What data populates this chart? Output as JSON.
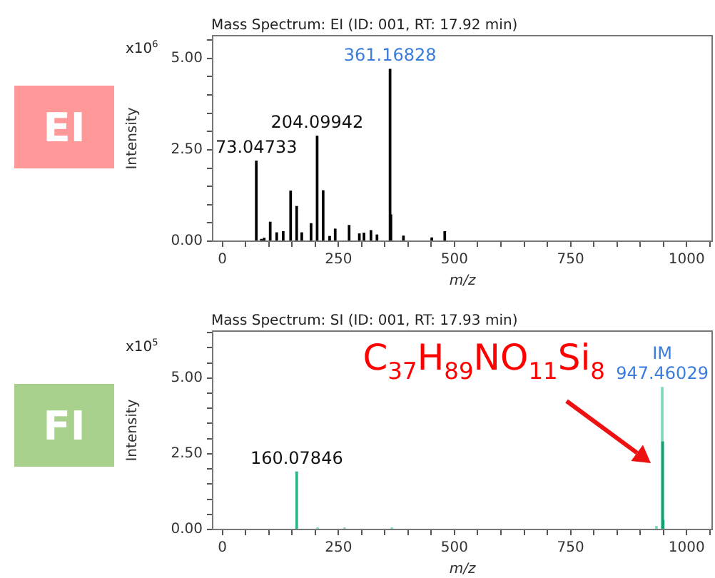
{
  "chart_data": [
    {
      "type": "bar",
      "title": "Mass Spectrum: EI (ID: 001, RT: 17.92 min)",
      "xlabel": "m/z",
      "ylabel": "Intensity",
      "annotations": [
        "x10$^{6}$",
        "EI",
        {
          "text": "73.04733",
          "x": 73.04733,
          "y": 2.19
        },
        {
          "text": "204.09942",
          "x": 204.09942,
          "y": 2.87
        },
        {
          "text": "361.16828",
          "x": 361.16828,
          "y": 4.7
        }
      ],
      "x": [
        73.04733,
        84,
        90,
        103,
        117,
        131,
        147,
        160,
        171,
        191,
        204.09942,
        217,
        231,
        243,
        273,
        295,
        305,
        320,
        333,
        361.16828,
        363,
        390,
        451,
        479
      ],
      "values": [
        2.19,
        0.05,
        0.08,
        0.52,
        0.23,
        0.26,
        1.37,
        0.95,
        0.23,
        0.48,
        2.87,
        1.38,
        0.13,
        0.33,
        0.43,
        0.2,
        0.22,
        0.29,
        0.17,
        4.7,
        0.72,
        0.14,
        0.09,
        0.26
      ],
      "color": "#000000",
      "xlim": [
        -21,
        1055
      ],
      "xticks": [
        0,
        {
          "value": 50,
          "label": null
        },
        {
          "value": 100,
          "label": null
        },
        {
          "value": 150,
          "label": null
        },
        {
          "value": 200,
          "label": null
        },
        250,
        {
          "value": 300,
          "label": null
        },
        {
          "value": 350,
          "label": null
        },
        {
          "value": 400,
          "label": null
        },
        {
          "value": 450,
          "label": null
        },
        500,
        {
          "value": 550,
          "label": null
        },
        {
          "value": 600,
          "label": null
        },
        {
          "value": 650,
          "label": null
        },
        {
          "value": 700,
          "label": null
        },
        750,
        {
          "value": 800,
          "label": null
        },
        {
          "value": 850,
          "label": null
        },
        {
          "value": 900,
          "label": null
        },
        {
          "value": 950,
          "label": null
        },
        1000,
        {
          "value": 1050,
          "label": null
        }
      ],
      "ylim": [
        0,
        5.62
      ],
      "yticks": [
        {
          "value": 0,
          "label": "0.00"
        },
        {
          "value": 0.5,
          "label": null
        },
        {
          "value": 1,
          "label": null
        },
        {
          "value": 1.5,
          "label": null
        },
        {
          "value": 2,
          "label": null
        },
        {
          "value": 2.5,
          "label": "2.50"
        },
        {
          "value": 3,
          "label": null
        },
        {
          "value": 3.5,
          "label": null
        },
        {
          "value": 4,
          "label": null
        },
        {
          "value": 4.5,
          "label": null
        },
        {
          "value": 5,
          "label": "5.00"
        },
        {
          "value": 5.5,
          "label": null
        }
      ],
      "grid": false,
      "legend": false
    },
    {
      "type": "bar",
      "title": "Mass Spectrum: SI (ID: 001, RT: 17.93 min)",
      "xlabel": "m/z",
      "ylabel": "Intensity",
      "annotations": [
        "x10$^{5}$",
        "FI",
        "C$_{37}$H$_{89}$NO$_{11}$Si$_{8}$",
        {
          "text": "160.07846",
          "x": 160.07846,
          "y": 1.9
        },
        {
          "text": "IM",
          "x": 947.46029,
          "y": 4.69
        },
        {
          "text": "947.46029",
          "x": 947.46029,
          "y": 4.69
        }
      ],
      "x": [
        160.07846,
        205,
        263,
        365,
        935,
        947.46029,
        948.46,
        949.46
      ],
      "values": [
        1.9,
        0.05,
        0.05,
        0.05,
        0.1,
        4.69,
        2.89,
        0.3
      ],
      "colors": [
        "#2bb585",
        "#7fd9b4",
        "#7fd9b4",
        "#7fd9b4",
        "#7fd9b4",
        "#7fd9b4",
        "#14a06e",
        "#14a06e"
      ],
      "xlim": [
        -21,
        1055
      ],
      "xticks": [
        0,
        {
          "value": 50,
          "label": null
        },
        {
          "value": 100,
          "label": null
        },
        {
          "value": 150,
          "label": null
        },
        {
          "value": 200,
          "label": null
        },
        250,
        {
          "value": 300,
          "label": null
        },
        {
          "value": 350,
          "label": null
        },
        {
          "value": 400,
          "label": null
        },
        {
          "value": 450,
          "label": null
        },
        500,
        {
          "value": 550,
          "label": null
        },
        {
          "value": 600,
          "label": null
        },
        {
          "value": 650,
          "label": null
        },
        {
          "value": 700,
          "label": null
        },
        750,
        {
          "value": 800,
          "label": null
        },
        {
          "value": 850,
          "label": null
        },
        {
          "value": 900,
          "label": null
        },
        {
          "value": 950,
          "label": null
        },
        1000,
        {
          "value": 1050,
          "label": null
        }
      ],
      "ylim": [
        0,
        6.55
      ],
      "yticks": [
        {
          "value": 0,
          "label": "0.00"
        },
        {
          "value": 0.5,
          "label": null
        },
        {
          "value": 1,
          "label": null
        },
        {
          "value": 1.5,
          "label": null
        },
        {
          "value": 2,
          "label": null
        },
        {
          "value": 2.5,
          "label": "2.50"
        },
        {
          "value": 3,
          "label": null
        },
        {
          "value": 3.5,
          "label": null
        },
        {
          "value": 4,
          "label": null
        },
        {
          "value": 4.5,
          "label": null
        },
        {
          "value": 5,
          "label": "5.00"
        },
        {
          "value": 5.5,
          "label": null
        },
        {
          "value": 6,
          "label": null
        },
        {
          "value": 6.5,
          "label": null
        }
      ],
      "grid": false,
      "legend": false
    }
  ]
}
